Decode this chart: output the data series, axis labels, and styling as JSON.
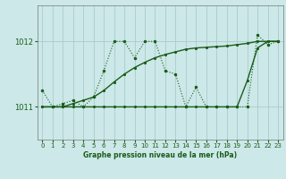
{
  "xlabel_label": "Graphe pression niveau de la mer (hPa)",
  "x_hours": [
    0,
    1,
    2,
    3,
    4,
    5,
    6,
    7,
    8,
    9,
    10,
    11,
    12,
    13,
    14,
    15,
    16,
    17,
    18,
    19,
    20,
    21,
    22,
    23
  ],
  "dotted_line": [
    1011.25,
    1011.0,
    1011.05,
    1011.1,
    1011.0,
    1011.15,
    1011.55,
    1012.0,
    1012.0,
    1011.75,
    1012.0,
    1012.0,
    1011.55,
    1011.5,
    1011.0,
    1011.3,
    1011.0,
    1011.0,
    1011.0,
    1011.0,
    1011.0,
    1012.1,
    1011.95,
    1012.0
  ],
  "solid_line1": [
    1011.0,
    1011.0,
    1011.0,
    1011.0,
    1011.0,
    1011.0,
    1011.0,
    1011.0,
    1011.0,
    1011.0,
    1011.0,
    1011.0,
    1011.0,
    1011.0,
    1011.0,
    1011.0,
    1011.0,
    1011.0,
    1011.0,
    1011.0,
    1011.4,
    1011.9,
    1012.0,
    1012.0
  ],
  "solid_line2": [
    1011.0,
    1011.0,
    1011.0,
    1011.05,
    1011.1,
    1011.15,
    1011.25,
    1011.38,
    1011.5,
    1011.6,
    1011.68,
    1011.75,
    1011.8,
    1011.84,
    1011.88,
    1011.9,
    1011.91,
    1011.92,
    1011.93,
    1011.95,
    1011.97,
    1012.0,
    1012.0,
    1012.0
  ],
  "bg_color": "#cce8e8",
  "grid_color": "#aacccc",
  "line_color": "#1a5c1a",
  "ylim_min": 1010.5,
  "ylim_max": 1012.55,
  "yticks": [
    1011,
    1012
  ],
  "xticks": [
    0,
    1,
    2,
    3,
    4,
    5,
    6,
    7,
    8,
    9,
    10,
    11,
    12,
    13,
    14,
    15,
    16,
    17,
    18,
    19,
    20,
    21,
    22,
    23
  ]
}
